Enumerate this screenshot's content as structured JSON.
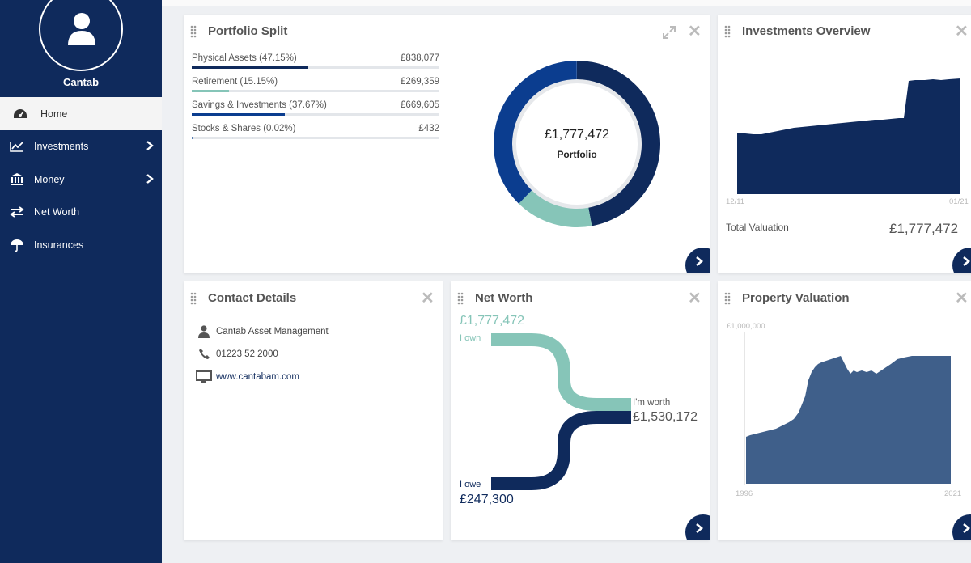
{
  "user": {
    "name": "Cantab"
  },
  "nav": [
    {
      "label": "Home",
      "icon": "dashboard-icon",
      "active": true
    },
    {
      "label": "Investments",
      "icon": "chart-line-icon",
      "chevron": true
    },
    {
      "label": "Money",
      "icon": "bank-icon",
      "chevron": true
    },
    {
      "label": "Net Worth",
      "icon": "exchange-arrows-icon"
    },
    {
      "label": "Insurances",
      "icon": "umbrella-icon"
    }
  ],
  "portfolio_split": {
    "title": "Portfolio Split",
    "items": [
      {
        "label": "Physical Assets (47.15%)",
        "value": "£838,077",
        "fraction": 0.4715,
        "color": "#0f2a5c"
      },
      {
        "label": "Retirement (15.15%)",
        "value": "£269,359",
        "fraction": 0.1515,
        "color": "#86c5b8"
      },
      {
        "label": "Savings & Investments (37.67%)",
        "value": "£669,605",
        "fraction": 0.3767,
        "color": "#0b3d8f"
      },
      {
        "label": "Stocks & Shares (0.02%)",
        "value": "£432",
        "fraction": 0.0002,
        "color": "#5a7fb3"
      }
    ],
    "donut_value": "£1,777,472",
    "donut_label": "Portfolio"
  },
  "investments_overview": {
    "title": "Investments Overview",
    "x_start": "12/11",
    "x_end": "01/21",
    "total_label": "Total Valuation",
    "total_value": "£1,777,472"
  },
  "contact": {
    "title": "Contact Details",
    "company": "Cantab Asset Management",
    "phone": "01223 52 2000",
    "website": "www.cantabam.com"
  },
  "net_worth": {
    "title": "Net Worth",
    "own_value": "£1,777,472",
    "own_label": "I own",
    "worth_label": "I'm worth",
    "worth_value": "£1,530,172",
    "owe_label": "I owe",
    "owe_value": "£247,300"
  },
  "property_valuation": {
    "title": "Property Valuation",
    "y_max_label": "£1,000,000",
    "x_start": "1996",
    "x_end": "2021"
  },
  "colors": {
    "navy": "#0f2a5c",
    "teal": "#86c5b8",
    "royal": "#0b3d8f",
    "steel": "#3f5f8a"
  }
}
